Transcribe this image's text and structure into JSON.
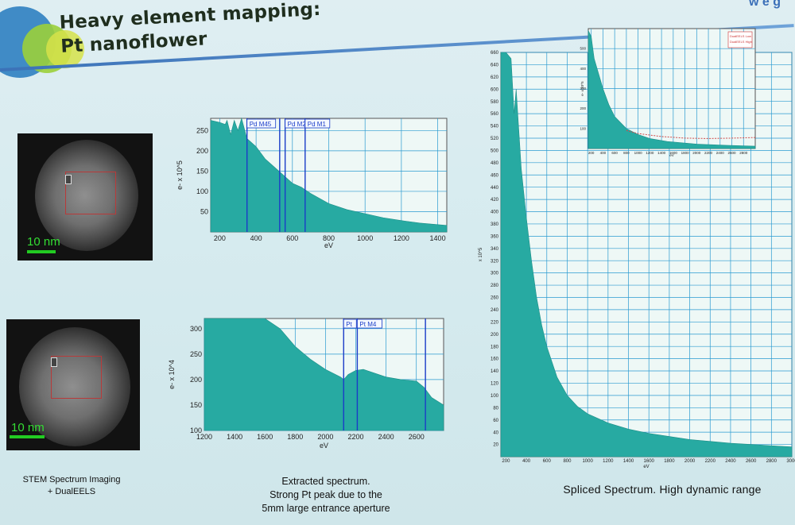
{
  "slide": {
    "title_line1": "Heavy element mapping:",
    "title_line2": "Pt nanoflower",
    "corner_text": "w e g",
    "caption_left_line1": "STEM Spectrum Imaging",
    "caption_left_line2": "+ DualEELS",
    "caption_mid_line1": "Extracted spectrum.",
    "caption_mid_line2": "Strong Pt peak due to the",
    "caption_mid_line3": "5mm large entrance aperture",
    "caption_right": "Spliced Spectrum. High dynamic range"
  },
  "images": {
    "scalebar_label_1": "10 nm",
    "scalebar_label_2": "10 nm"
  },
  "colors": {
    "fill": "#27aaa2",
    "marker": "#1a3cc8",
    "grid": "#2a9ad0",
    "plot_bg": "#eef8f6"
  },
  "chart_data": [
    {
      "type": "area",
      "xlabel": "eV",
      "ylabel": "e- x 10^5",
      "xlim": [
        150,
        1450
      ],
      "ylim": [
        0,
        280
      ],
      "x_ticks": [
        "200",
        "400",
        "600",
        "800",
        "1000",
        "1200",
        "1400"
      ],
      "y_ticks": [
        "50",
        "100",
        "150",
        "200",
        "250"
      ],
      "x": [
        150,
        200,
        230,
        240,
        260,
        280,
        300,
        320,
        350,
        400,
        450,
        500,
        550,
        600,
        650,
        700,
        800,
        900,
        1000,
        1100,
        1200,
        1300,
        1400,
        1450
      ],
      "values": [
        275,
        270,
        265,
        275,
        240,
        275,
        250,
        280,
        230,
        210,
        180,
        160,
        140,
        120,
        110,
        95,
        70,
        55,
        45,
        35,
        28,
        22,
        18,
        16
      ],
      "annotations": [
        {
          "label": "Pd M45",
          "x": 350
        },
        {
          "label": "",
          "x": 530
        },
        {
          "label": "Pd M2",
          "x": 560
        },
        {
          "label": "Pd M1",
          "x": 670
        }
      ]
    },
    {
      "type": "area",
      "xlabel": "eV",
      "ylabel": "e- x 10^4",
      "xlim": [
        1200,
        2780
      ],
      "ylim": [
        100,
        320
      ],
      "x_ticks": [
        "1200",
        "1400",
        "1600",
        "1800",
        "2000",
        "2200",
        "2400",
        "2600"
      ],
      "y_ticks": [
        "100",
        "150",
        "200",
        "250",
        "300"
      ],
      "x": [
        1200,
        1300,
        1400,
        1500,
        1600,
        1700,
        1800,
        1900,
        2000,
        2100,
        2120,
        2150,
        2200,
        2250,
        2300,
        2400,
        2500,
        2600,
        2650,
        2700,
        2780
      ],
      "values": [
        320,
        320,
        320,
        320,
        320,
        300,
        265,
        240,
        220,
        205,
        200,
        210,
        218,
        220,
        215,
        205,
        200,
        197,
        185,
        165,
        150
      ],
      "annotations": [
        {
          "label": "Pt",
          "x": 2120
        },
        {
          "label": "Pt M4",
          "x": 2210
        },
        {
          "label": "",
          "x": 2660
        }
      ]
    },
    {
      "type": "area",
      "xlabel": "eV",
      "ylabel": "x 10^5",
      "xlim": [
        150,
        3000
      ],
      "ylim": [
        0,
        660
      ],
      "x_ticks": [
        "200",
        "400",
        "600",
        "800",
        "1000",
        "1200",
        "1400",
        "1600",
        "1800",
        "2000",
        "2200",
        "2400",
        "2600",
        "2800",
        "3000"
      ],
      "y_ticks": [
        "20",
        "40",
        "60",
        "80",
        "100",
        "120",
        "140",
        "160",
        "180",
        "200",
        "220",
        "240",
        "260",
        "280",
        "300",
        "320",
        "340",
        "360",
        "380",
        "400",
        "420",
        "440",
        "460",
        "480",
        "500",
        "520",
        "540",
        "560",
        "580",
        "600",
        "620",
        "640",
        "660"
      ],
      "x": [
        150,
        200,
        250,
        280,
        300,
        350,
        400,
        450,
        500,
        550,
        600,
        700,
        800,
        900,
        1000,
        1200,
        1400,
        1600,
        1800,
        2000,
        2200,
        2400,
        2600,
        2800,
        3000
      ],
      "values": [
        660,
        660,
        650,
        560,
        600,
        470,
        390,
        320,
        260,
        215,
        180,
        130,
        100,
        82,
        70,
        55,
        45,
        38,
        33,
        28,
        25,
        22,
        20,
        18,
        16
      ]
    },
    {
      "type": "area",
      "xlabel": "eV",
      "ylabel": "e- x 10^5",
      "xlim": [
        150,
        3000
      ],
      "ylim": [
        0,
        600
      ],
      "x_ticks": [
        "200",
        "400",
        "600",
        "800",
        "1000",
        "1200",
        "1400",
        "1600",
        "1800",
        "2000",
        "2200",
        "2400",
        "2600",
        "2800"
      ],
      "y_ticks": [
        "100",
        "200",
        "300",
        "400",
        "500"
      ],
      "legend_entries": [
        "DualEELS Low",
        "DualEELS High"
      ],
      "legend_position": "top-right",
      "x": [
        150,
        200,
        250,
        300,
        400,
        500,
        600,
        800,
        1000,
        1200,
        1500,
        2000,
        2500,
        3000
      ],
      "values": [
        590,
        560,
        450,
        400,
        300,
        220,
        160,
        100,
        70,
        50,
        35,
        22,
        16,
        12
      ]
    }
  ]
}
